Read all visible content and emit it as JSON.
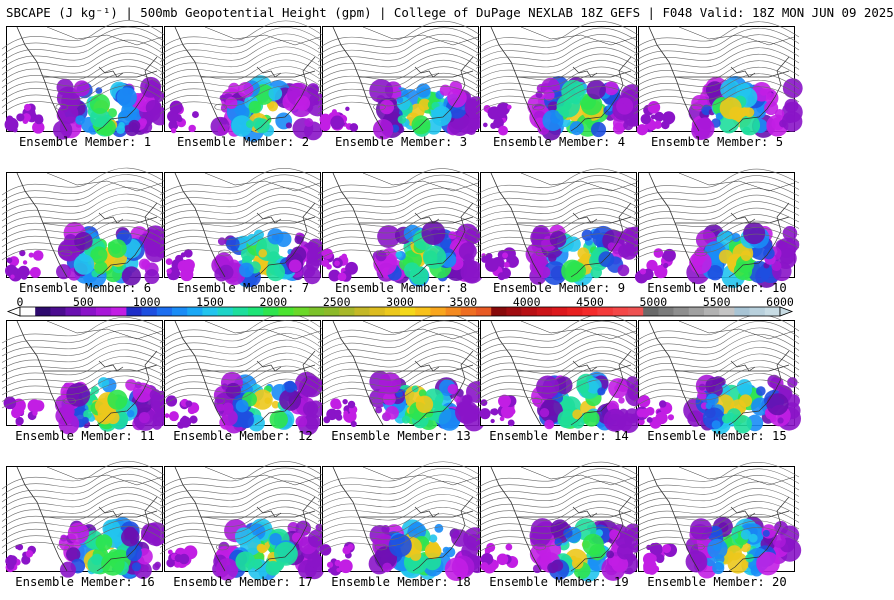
{
  "header": {
    "title": "SBCAPE (J kg⁻¹) | 500mb Geopotential Height (gpm) | College of DuPage NEXLAB 18Z GEFS | F048 Valid: 18Z MON JUN 09 2025"
  },
  "panels": [
    {
      "label": "Ensemble Member: 1"
    },
    {
      "label": "Ensemble Member: 2"
    },
    {
      "label": "Ensemble Member: 3"
    },
    {
      "label": "Ensemble Member: 4"
    },
    {
      "label": "Ensemble Member: 5"
    },
    {
      "label": "Ensemble Member: 6"
    },
    {
      "label": "Ensemble Member: 7"
    },
    {
      "label": "Ensemble Member: 8"
    },
    {
      "label": "Ensemble Member: 9"
    },
    {
      "label": "Ensemble Member: 10"
    },
    {
      "label": "Ensemble Member: 11"
    },
    {
      "label": "Ensemble Member: 12"
    },
    {
      "label": "Ensemble Member: 13"
    },
    {
      "label": "Ensemble Member: 14"
    },
    {
      "label": "Ensemble Member: 15"
    },
    {
      "label": "Ensemble Member: 16"
    },
    {
      "label": "Ensemble Member: 17"
    },
    {
      "label": "Ensemble Member: 18"
    },
    {
      "label": "Ensemble Member: 19"
    },
    {
      "label": "Ensemble Member: 20"
    }
  ],
  "colorbar": {
    "min": 0,
    "max": 6000,
    "tick_labels": [
      "0",
      "500",
      "1000",
      "1500",
      "2000",
      "2500",
      "3000",
      "3500",
      "4000",
      "4500",
      "5000",
      "5500",
      "6000"
    ],
    "colors": [
      "#ffffff",
      "#2e0a6e",
      "#4b0c8f",
      "#6a10b0",
      "#8a14c8",
      "#a818d8",
      "#c21ee4",
      "#1f2ec8",
      "#1e4fe0",
      "#1c6ef0",
      "#1a8cf6",
      "#1aa8f6",
      "#22c4ee",
      "#1ed4c8",
      "#1ede9c",
      "#1ee476",
      "#2ee44e",
      "#4ce430",
      "#6cd82a",
      "#7cc22a",
      "#8cba2a",
      "#a8b82a",
      "#c4b828",
      "#dcbc20",
      "#ecc81c",
      "#f4d81a",
      "#f8c21c",
      "#f8a61e",
      "#f48a20",
      "#ee6e22",
      "#e85a24",
      "#880a0a",
      "#a00c10",
      "#b81014",
      "#cc1418",
      "#dc181c",
      "#e82020",
      "#f42a2a",
      "#f43a3a",
      "#f44848",
      "#ee5252",
      "#6a6a6a",
      "#7c7c7c",
      "#8e8e8e",
      "#a0a0a0",
      "#b2b2b2",
      "#c4c4c4",
      "#a8c4d4",
      "#b8d0dc",
      "#c8dce4"
    ]
  },
  "legend_colors": {
    "map_line": "#333333",
    "contour": "#6a6a6a"
  }
}
